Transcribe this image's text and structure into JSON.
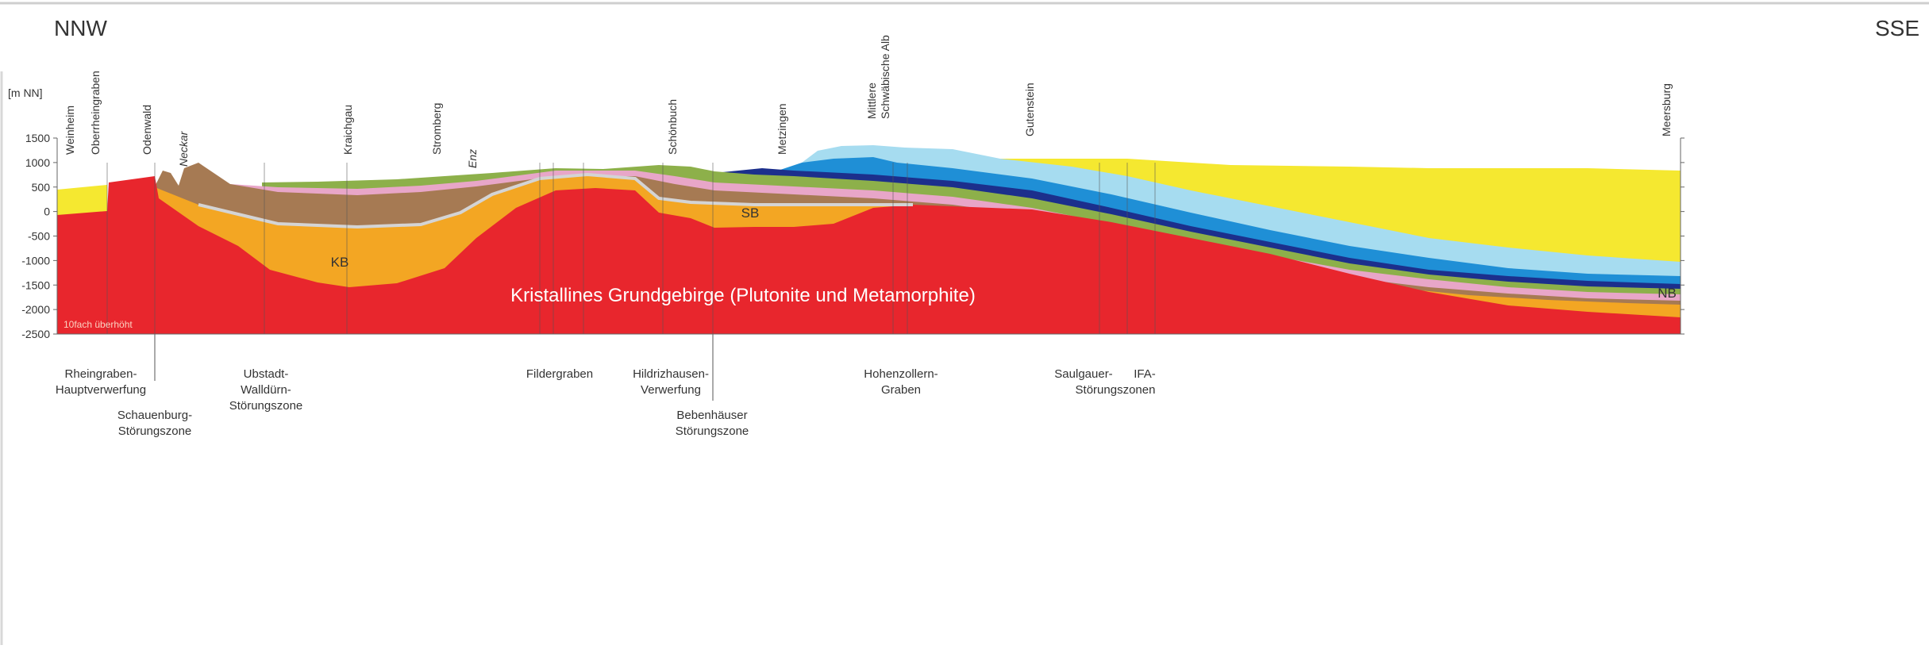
{
  "header": {
    "left": "NNW",
    "right": "SSE"
  },
  "axis": {
    "label": "[m NN]",
    "ticks": [
      1500,
      1000,
      500,
      0,
      -500,
      -1000,
      -1500,
      -2000,
      -2500
    ]
  },
  "locations": [
    {
      "lines": [
        "Weinheim"
      ]
    },
    {
      "lines": [
        "Oberrheingraben"
      ]
    },
    {
      "lines": [
        "Odenwald"
      ]
    },
    {
      "lines": [
        "Neckar"
      ]
    },
    {
      "lines": [
        "Kraichgau"
      ]
    },
    {
      "lines": [
        "Stromberg"
      ]
    },
    {
      "lines": [
        "Enz"
      ]
    },
    {
      "lines": [
        "Schönbuch"
      ]
    },
    {
      "lines": [
        "Metzingen"
      ]
    },
    {
      "lines": [
        "Mittlere",
        "Schwäbische Alb"
      ]
    },
    {
      "lines": [
        "Gutenstein"
      ]
    },
    {
      "lines": [
        "Meersburg"
      ]
    }
  ],
  "faults": [
    {
      "lines": [
        "Rheingraben-",
        "Hauptverwerfung"
      ]
    },
    {
      "lines": [
        "Schauenburg-",
        "Störungszone"
      ]
    },
    {
      "lines": [
        "Ubstadt-",
        "Walldürn-",
        "Störungszone"
      ]
    },
    {
      "lines": [
        "Fildergraben"
      ]
    },
    {
      "lines": [
        "Hildrizhausen-",
        "Verwerfung"
      ]
    },
    {
      "lines": [
        "Bebenhäuser",
        "Störungszone"
      ]
    },
    {
      "lines": [
        "Hohenzollern-",
        "Graben"
      ]
    },
    {
      "lines": [
        "Saulgauer-",
        "IFA-",
        "Störungszonen"
      ]
    }
  ],
  "units": {
    "kb": "KB",
    "sb": "SB",
    "nb": "NB",
    "basement": "Kristallines Grundgebirge (Plutonite und Metamorphite)"
  },
  "note": "10fach überhöht"
}
